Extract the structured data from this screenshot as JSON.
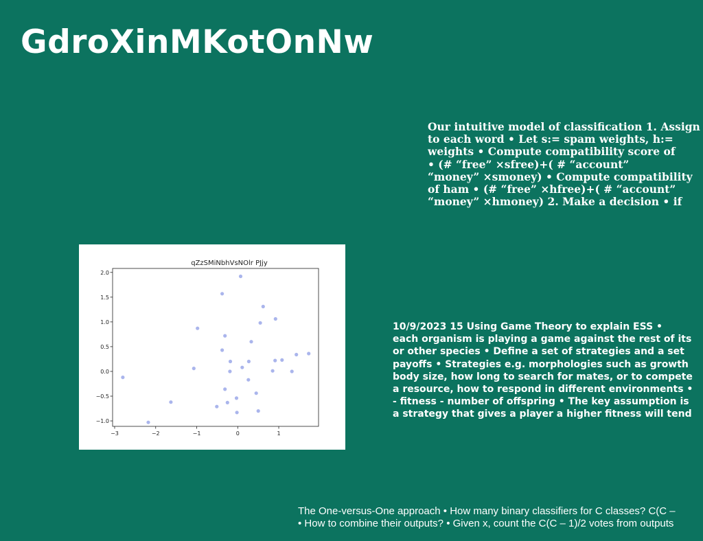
{
  "title": "GdroXinMKotOnNw",
  "text_block_1": {
    "lines": [
      "Our intuitive model of classification 1. Assign",
      "to each word • Let s:= spam weights, h:=",
      "weights • Compute compatibility score of",
      "• (# “free” ×sfree)+( # “account”",
      "“money” ×smoney) • Compute compatibility",
      "of ham • (# “free” ×hfree)+( # “account”",
      "“money” ×hmoney) 2. Make a decision • if"
    ]
  },
  "text_block_2": {
    "lines": [
      "10/9/2023 15 Using Game Theory to explain ESS •",
      "each organism is playing a game against the rest of its",
      "or other species • Define a set of strategies and a set",
      "payoffs • Strategies e.g. morphologies such as growth",
      "body size, how long to search for mates, or to compete",
      "a resource, how to respond in different environments •",
      "- fitness - number of offspring • The key assumption is",
      "a strategy that gives a player a higher fitness will tend"
    ]
  },
  "text_block_3": {
    "lines": [
      "The One-versus-One approach • How many binary classifiers for C classes? C(C –",
      "• How to combine their outputs? • Given x, count the C(C – 1)/2 votes from outputs"
    ]
  },
  "chart_data": {
    "type": "scatter",
    "title": "qZzSMiNbhVsNOlr PJjy",
    "xlabel": "",
    "ylabel": "",
    "xlim": [
      -3.05,
      1.97
    ],
    "ylim": [
      -1.11,
      2.08
    ],
    "xticks": [
      -3,
      -2,
      -1,
      0,
      1
    ],
    "yticks": [
      -1.0,
      -0.5,
      0.0,
      0.5,
      1.0,
      1.5,
      2.0
    ],
    "xtick_labels": [
      "−3",
      "−2",
      "−1",
      "0",
      "1"
    ],
    "ytick_labels": [
      "−1.0",
      "−0.5",
      "0.0",
      "0.5",
      "1.0",
      "1.5",
      "2.0"
    ],
    "grid": false,
    "point_color": "#aab5ec",
    "x": [
      0.07,
      -0.38,
      0.62,
      0.92,
      0.55,
      -0.98,
      -0.31,
      0.33,
      -0.38,
      -0.18,
      0.27,
      0.91,
      1.08,
      1.43,
      1.73,
      -1.07,
      0.11,
      -0.19,
      0.85,
      1.32,
      0.26,
      -2.8,
      -0.31,
      0.45,
      -0.03,
      -1.63,
      -0.25,
      -0.51,
      0.5,
      -0.02,
      -2.18
    ],
    "y": [
      1.92,
      1.57,
      1.31,
      1.06,
      0.98,
      0.87,
      0.72,
      0.6,
      0.43,
      0.2,
      0.2,
      0.22,
      0.23,
      0.34,
      0.36,
      0.06,
      0.08,
      0.0,
      0.01,
      0.0,
      -0.17,
      -0.12,
      -0.36,
      -0.44,
      -0.54,
      -0.62,
      -0.63,
      -0.71,
      -0.8,
      -0.83,
      -1.03
    ]
  }
}
